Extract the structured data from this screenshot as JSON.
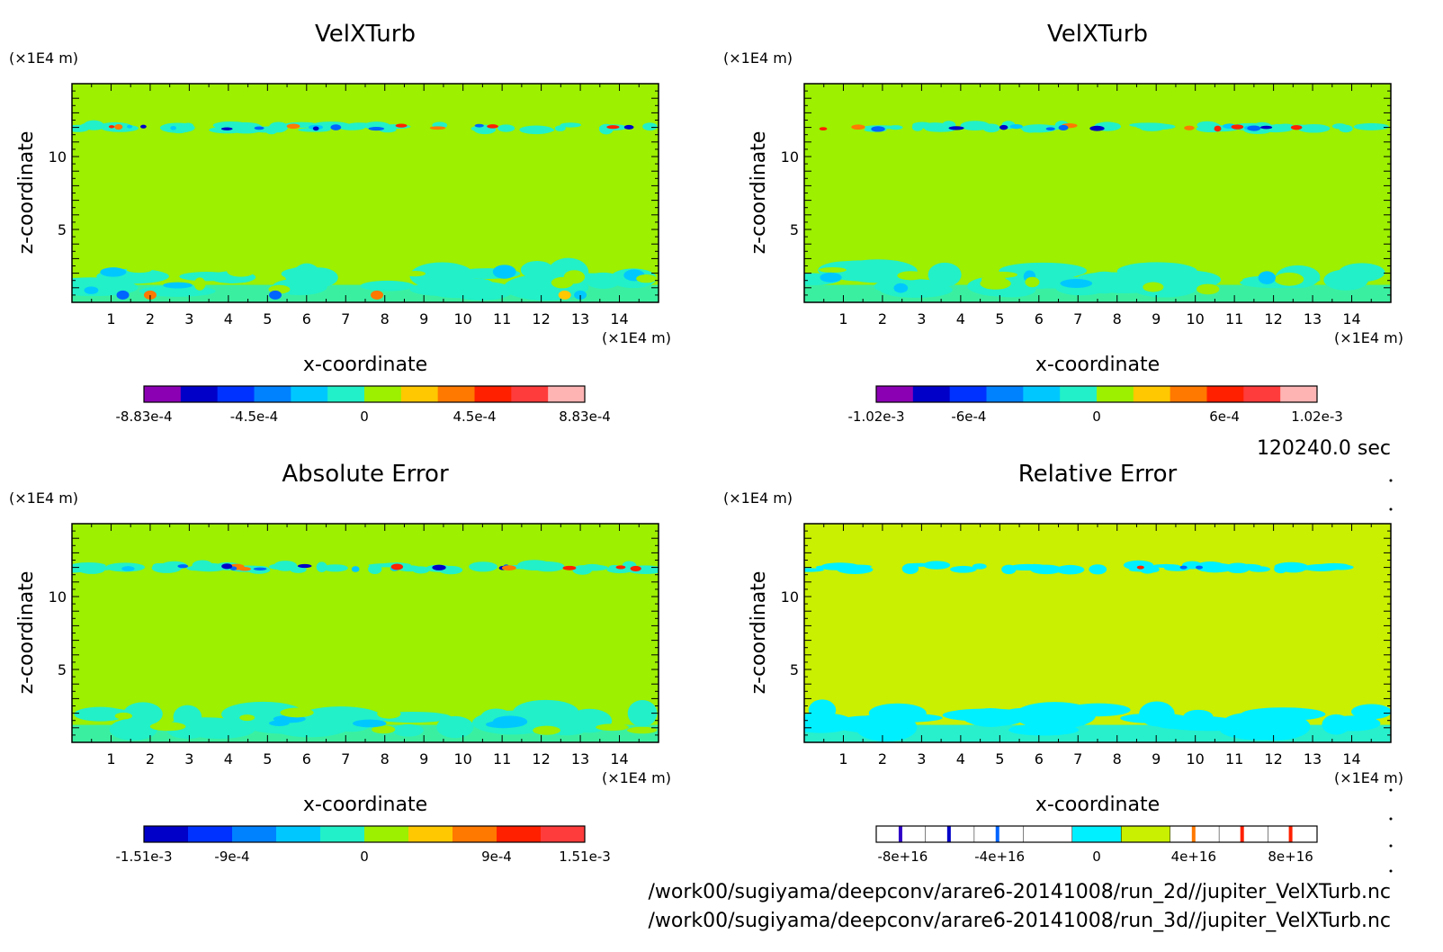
{
  "timestamp": "120240.0 sec",
  "file_paths": [
    "/work00/sugiyama/deepconv/arare6-20141008/run_2d//jupiter_VelXTurb.nc",
    "/work00/sugiyama/deepconv/arare6-20141008/run_3d//jupiter_VelXTurb.nc"
  ],
  "colors": {
    "background": "#9cf000",
    "relative_background": "#c8f000",
    "cyan": "#22f0c8",
    "light_blue": "#00c8ff",
    "blue": "#0064ff",
    "dark_blue": "#0000c8",
    "orange": "#ff7800",
    "red": "#ff2000",
    "yellow": "#ffc800"
  },
  "chart_data": [
    {
      "type": "heatmap",
      "title": "VelXTurb",
      "xlabel": "x-coordinate",
      "ylabel": "z-coordinate",
      "x_unit": "(×1E4 m)",
      "y_unit": "(×1E4 m)",
      "xlim": [
        0,
        15
      ],
      "ylim": [
        0,
        15
      ],
      "x_ticks": [
        1,
        2,
        3,
        4,
        5,
        6,
        7,
        8,
        9,
        10,
        11,
        12,
        13,
        14
      ],
      "y_ticks": [
        5,
        10
      ],
      "colorbar": {
        "colors": [
          "#8c00b4",
          "#0000c8",
          "#0032ff",
          "#0082ff",
          "#00c8ff",
          "#22f0c8",
          "#9cf000",
          "#ffc800",
          "#ff7800",
          "#ff2000",
          "#ff3c3c",
          "#ffb4b4"
        ],
        "tick_labels": [
          "-8.83e-4",
          "-4.5e-4",
          "0",
          "4.5e-4",
          "8.83e-4"
        ],
        "tick_positions": [
          0,
          0.25,
          0.5,
          0.75,
          1
        ]
      }
    },
    {
      "type": "heatmap",
      "title": "VelXTurb",
      "xlabel": "x-coordinate",
      "ylabel": "z-coordinate",
      "x_unit": "(×1E4 m)",
      "y_unit": "(×1E4 m)",
      "xlim": [
        0,
        15
      ],
      "ylim": [
        0,
        15
      ],
      "x_ticks": [
        1,
        2,
        3,
        4,
        5,
        6,
        7,
        8,
        9,
        10,
        11,
        12,
        13,
        14
      ],
      "y_ticks": [
        5,
        10
      ],
      "colorbar": {
        "colors": [
          "#8c00b4",
          "#0000c8",
          "#0032ff",
          "#0082ff",
          "#00c8ff",
          "#22f0c8",
          "#9cf000",
          "#ffc800",
          "#ff7800",
          "#ff2000",
          "#ff3c3c",
          "#ffb4b4"
        ],
        "tick_labels": [
          "-1.02e-3",
          "-6e-4",
          "0",
          "6e-4",
          "1.02e-3"
        ],
        "tick_positions": [
          0,
          0.21,
          0.5,
          0.79,
          1
        ]
      }
    },
    {
      "type": "heatmap",
      "title": "Absolute Error",
      "xlabel": "x-coordinate",
      "ylabel": "z-coordinate",
      "x_unit": "(×1E4 m)",
      "y_unit": "(×1E4 m)",
      "xlim": [
        0,
        15
      ],
      "ylim": [
        0,
        15
      ],
      "x_ticks": [
        1,
        2,
        3,
        4,
        5,
        6,
        7,
        8,
        9,
        10,
        11,
        12,
        13,
        14
      ],
      "y_ticks": [
        5,
        10
      ],
      "colorbar": {
        "colors": [
          "#0000c8",
          "#0032ff",
          "#0082ff",
          "#00c8ff",
          "#22f0c8",
          "#9cf000",
          "#ffc800",
          "#ff7800",
          "#ff2000",
          "#ff3c3c"
        ],
        "tick_labels": [
          "-1.51e-3",
          "-9e-4",
          "0",
          "9e-4",
          "1.51e-3"
        ],
        "tick_positions": [
          0,
          0.2,
          0.5,
          0.8,
          1
        ]
      }
    },
    {
      "type": "heatmap",
      "title": "Relative Error",
      "xlabel": "x-coordinate",
      "ylabel": "z-coordinate",
      "x_unit": "(×1E4 m)",
      "y_unit": "(×1E4 m)",
      "xlim": [
        0,
        15
      ],
      "ylim": [
        0,
        15
      ],
      "x_ticks": [
        1,
        2,
        3,
        4,
        5,
        6,
        7,
        8,
        9,
        10,
        11,
        12,
        13,
        14
      ],
      "y_ticks": [
        5,
        10
      ],
      "colorbar": {
        "colors": [
          "#ffffff",
          "#ffffff",
          "#ffffff",
          "#ffffff",
          "#00f0ff",
          "#c8f000",
          "#ffffff",
          "#ffffff",
          "#ffffff"
        ],
        "tick_labels": [
          "-8e+16",
          "-4e+16",
          "0",
          "4e+16",
          "8e+16"
        ],
        "tick_positions": [
          0.06,
          0.28,
          0.5,
          0.72,
          0.94
        ]
      }
    }
  ]
}
